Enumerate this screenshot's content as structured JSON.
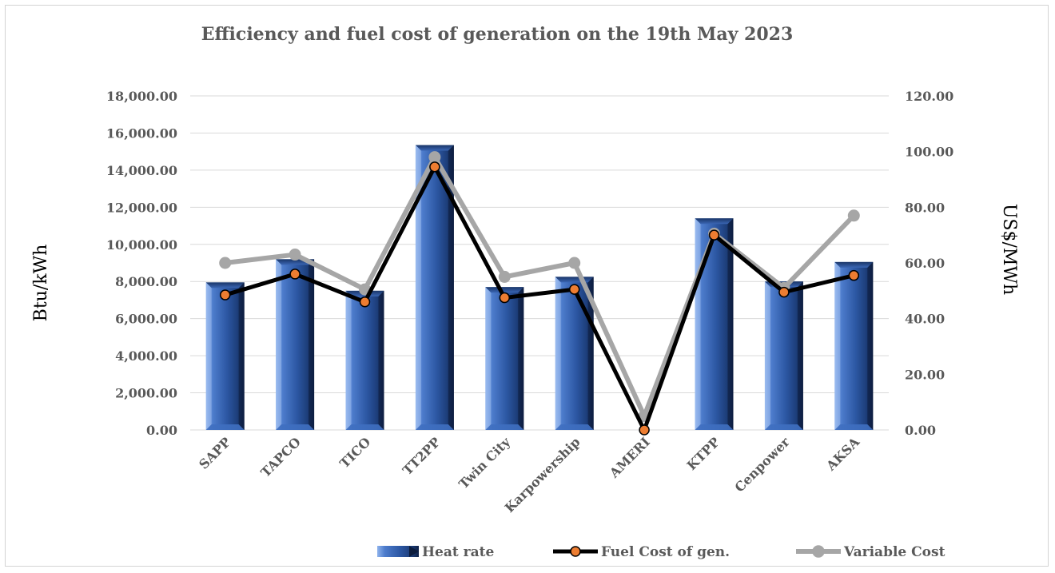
{
  "chart_data": {
    "type": "bar",
    "title": "Efficiency and fuel cost of generation on the 19th May 2023",
    "categories": [
      "SAPP",
      "TAPCO",
      "TICO",
      "TT2PP",
      "Twin City",
      "Karpowership",
      "AMERI",
      "KTPP",
      "Cenpower",
      "AKSA"
    ],
    "ylabel": "Btu/kWh",
    "y2label": "US$/MWh",
    "ylim": [
      0,
      18000
    ],
    "y2lim": [
      0,
      120
    ],
    "yticks": [
      "0.00",
      "2,000.00",
      "4,000.00",
      "6,000.00",
      "8,000.00",
      "10,000.00",
      "12,000.00",
      "14,000.00",
      "16,000.00",
      "18,000.00"
    ],
    "y2ticks": [
      "0.00",
      "20.00",
      "40.00",
      "60.00",
      "80.00",
      "100.00",
      "120.00"
    ],
    "grid": true,
    "legend_position": "bottom",
    "series": [
      {
        "name": "Heat rate",
        "type": "bar",
        "axis": "left",
        "color": "#2e5aa8",
        "values": [
          7950,
          9200,
          7500,
          15350,
          7700,
          8250,
          0,
          11400,
          8000,
          9050
        ]
      },
      {
        "name": "Fuel Cost of gen.",
        "type": "line",
        "axis": "right",
        "color": "#000000",
        "marker_color": "#ed7d31",
        "values": [
          48.5,
          56.0,
          46.0,
          94.5,
          47.5,
          50.5,
          0.0,
          70.0,
          49.5,
          55.5
        ]
      },
      {
        "name": "Variable Cost",
        "type": "line",
        "axis": "right",
        "color": "#a6a6a6",
        "marker_color": "#a6a6a6",
        "values": [
          60.0,
          63.0,
          50.5,
          98.0,
          55.0,
          60.0,
          5.0,
          70.5,
          51.0,
          77.0
        ]
      }
    ]
  }
}
